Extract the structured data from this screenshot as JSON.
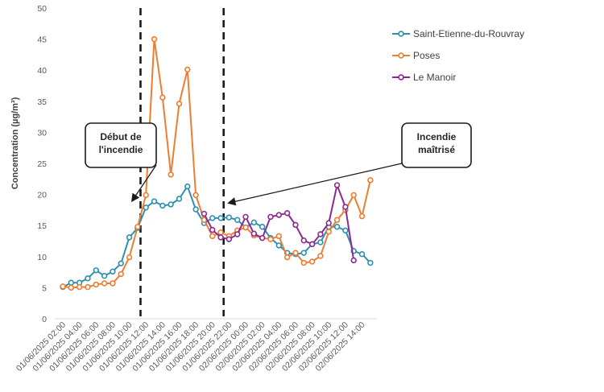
{
  "chart_data": {
    "type": "line",
    "ylabel": "Concentration (µg/m³)",
    "xlabel": "",
    "ylim": [
      0,
      50
    ],
    "yticks": [
      0,
      5,
      10,
      15,
      20,
      25,
      30,
      35,
      40,
      45,
      50
    ],
    "grid": false,
    "legend_position": "top-right",
    "x": [
      "01/06/2025 02:00",
      "01/06/2025 03:00",
      "01/06/2025 04:00",
      "01/06/2025 05:00",
      "01/06/2025 06:00",
      "01/06/2025 07:00",
      "01/06/2025 08:00",
      "01/06/2025 09:00",
      "01/06/2025 10:00",
      "01/06/2025 11:00",
      "01/06/2025 12:00",
      "01/06/2025 13:00",
      "01/06/2025 14:00",
      "01/06/2025 15:00",
      "01/06/2025 16:00",
      "01/06/2025 17:00",
      "01/06/2025 18:00",
      "01/06/2025 19:00",
      "01/06/2025 20:00",
      "01/06/2025 21:00",
      "01/06/2025 22:00",
      "01/06/2025 23:00",
      "02/06/2025 00:00",
      "02/06/2025 01:00",
      "02/06/2025 02:00",
      "02/06/2025 03:00",
      "02/06/2025 04:00",
      "02/06/2025 05:00",
      "02/06/2025 06:00",
      "02/06/2025 07:00",
      "02/06/2025 08:00",
      "02/06/2025 09:00",
      "02/06/2025 10:00",
      "02/06/2025 11:00",
      "02/06/2025 12:00",
      "02/06/2025 13:00",
      "02/06/2025 14:00",
      "02/06/2025 15:00"
    ],
    "x_tick_labels": [
      "01/06/2025 02:00",
      "01/06/2025 04:00",
      "01/06/2025 06:00",
      "01/06/2025 08:00",
      "01/06/2025 10:00",
      "01/06/2025 12:00",
      "01/06/2025 14:00",
      "01/06/2025 16:00",
      "01/06/2025 18:00",
      "01/06/2025 20:00",
      "01/06/2025 22:00",
      "02/06/2025 00:00",
      "02/06/2025 02:00",
      "02/06/2025 04:00",
      "02/06/2025 06:00",
      "02/06/2025 08:00",
      "02/06/2025 10:00",
      "02/06/2025 12:00",
      "02/06/2025 14:00"
    ],
    "series": [
      {
        "name": "Saint-Etienne-du-Rouvray",
        "color": "#2E8FB0",
        "values": [
          5.1,
          5.8,
          5.8,
          6.5,
          7.8,
          6.9,
          7.6,
          8.9,
          13.1,
          14.6,
          17.9,
          18.9,
          18.2,
          18.4,
          19.3,
          21.3,
          17.6,
          15.4,
          16.2,
          16.2,
          16.3,
          15.9,
          14.7,
          15.5,
          14.8,
          13.0,
          11.8,
          10.6,
          10.4,
          10.6,
          12.0,
          12.3,
          14.8,
          14.8,
          14.2,
          10.9,
          10.4,
          9.0
        ]
      },
      {
        "name": "Poses",
        "color": "#ED7D31",
        "values": [
          5.2,
          5.0,
          5.1,
          5.1,
          5.5,
          5.7,
          5.7,
          7.2,
          9.9,
          14.8,
          19.9,
          45.0,
          35.6,
          23.2,
          34.6,
          40.1,
          19.9,
          15.9,
          13.3,
          13.9,
          13.3,
          14.2,
          14.7,
          13.4,
          13.0,
          12.8,
          13.3,
          9.9,
          10.6,
          9.0,
          9.2,
          10.1,
          14.0,
          15.9,
          17.5,
          19.9,
          16.5,
          22.3
        ]
      },
      {
        "name": "Le Manoir",
        "color": "#8E2A8E",
        "values": [
          null,
          null,
          null,
          null,
          null,
          null,
          null,
          null,
          null,
          null,
          null,
          null,
          null,
          null,
          null,
          null,
          null,
          16.9,
          14.3,
          13.1,
          12.8,
          13.6,
          16.4,
          13.7,
          13.0,
          16.4,
          16.7,
          17.0,
          15.1,
          12.6,
          12.0,
          13.6,
          15.4,
          21.5,
          18.0,
          9.4,
          null,
          null
        ]
      }
    ],
    "annotations": [
      {
        "id": "start",
        "lines": [
          "Début de",
          "l'incendie"
        ],
        "x_position": 9.35
      },
      {
        "id": "end",
        "lines": [
          "Incendie",
          "maîtrisé"
        ],
        "x_position": 19.35
      }
    ]
  }
}
